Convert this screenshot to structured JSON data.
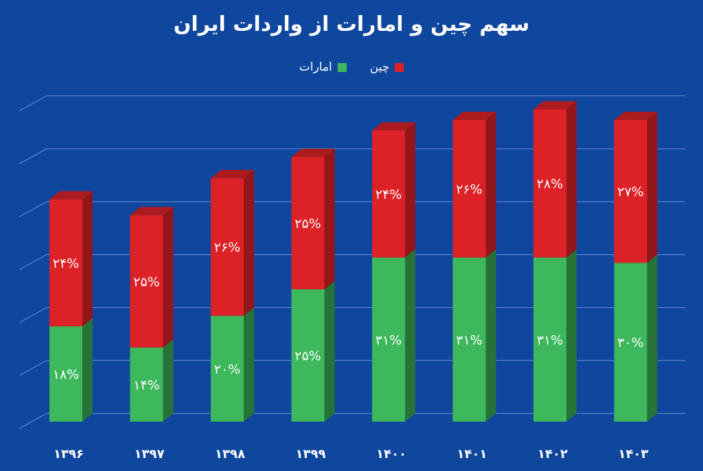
{
  "chart_data": {
    "type": "bar",
    "stacked": true,
    "title": "سهم چین و امارات از واردات ایران",
    "legend_position": "top-center",
    "grid": true,
    "categories": [
      "۱۳۹۶",
      "۱۳۹۷",
      "۱۳۹۸",
      "۱۳۹۹",
      "۱۴۰۰",
      "۱۴۰۱",
      "۱۴۰۲",
      "۱۴۰۳"
    ],
    "series": [
      {
        "name": "امارات",
        "color": "#3db85c",
        "values": [
          18,
          14,
          20,
          25,
          31,
          31,
          31,
          30
        ],
        "labels": [
          "۱۸%",
          "۱۴%",
          "۲۰%",
          "۲۵%",
          "۳۱%",
          "۳۱%",
          "۳۱%",
          "۳۰%"
        ]
      },
      {
        "name": "چین",
        "color": "#dd2227",
        "values": [
          24,
          25,
          26,
          25,
          24,
          26,
          28,
          27
        ],
        "labels": [
          "۲۴%",
          "۲۵%",
          "۲۶%",
          "۲۵%",
          "۲۴%",
          "۲۶%",
          "۲۸%",
          "۲۷%"
        ]
      }
    ],
    "ylim": [
      0,
      60
    ]
  }
}
